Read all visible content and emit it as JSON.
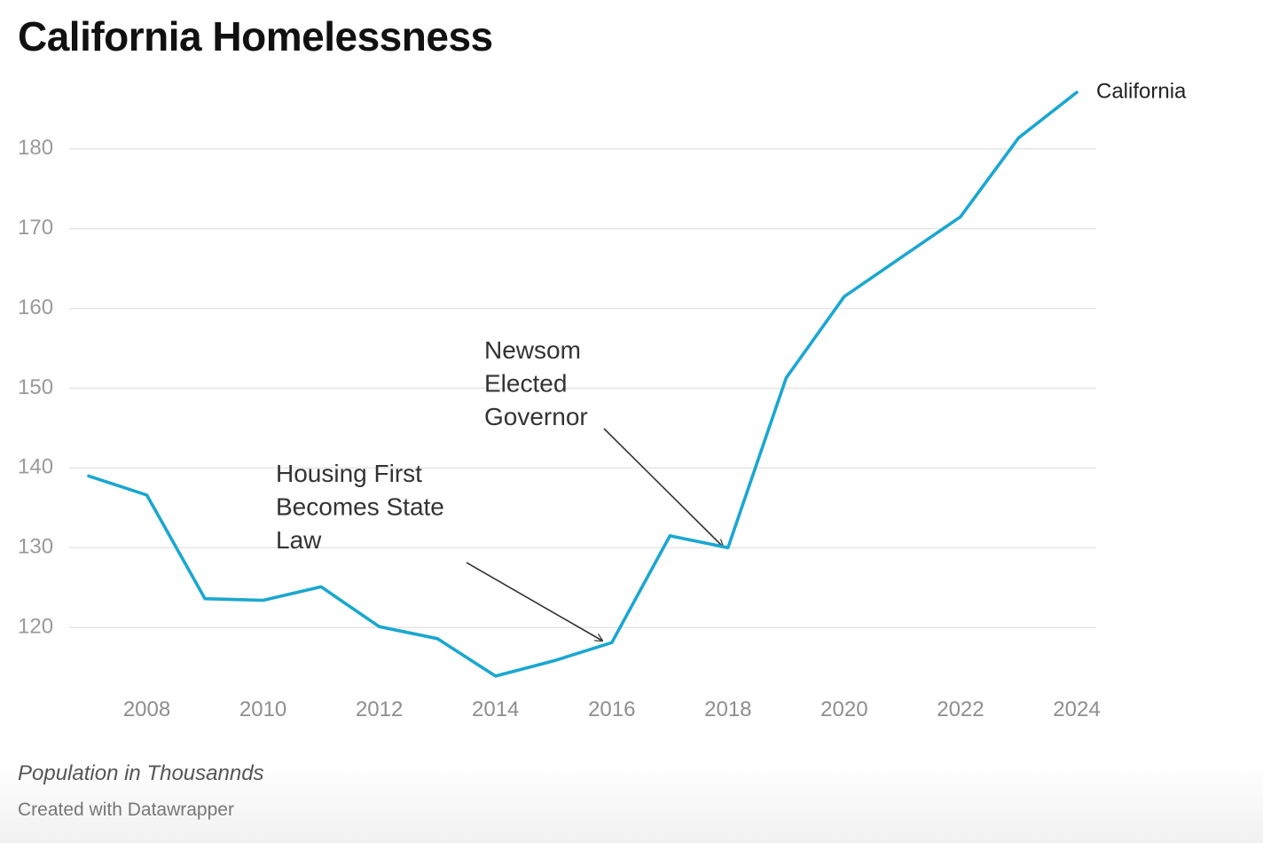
{
  "chart_data": {
    "type": "line",
    "title": "California Homelessness",
    "x": [
      2007,
      2008,
      2009,
      2010,
      2011,
      2012,
      2013,
      2014,
      2015,
      2016,
      2017,
      2018,
      2019,
      2020,
      2021,
      2022,
      2023,
      2024
    ],
    "series": [
      {
        "name": "California",
        "color": "#1aa7d1",
        "values": [
          139.0,
          136.6,
          123.6,
          123.4,
          125.1,
          120.1,
          118.6,
          113.9,
          115.8,
          118.1,
          131.5,
          130.0,
          151.3,
          161.5,
          166.5,
          171.5,
          181.4,
          187.1
        ]
      }
    ],
    "x_ticks": [
      2008,
      2010,
      2012,
      2014,
      2016,
      2018,
      2020,
      2022,
      2024
    ],
    "y_ticks": [
      120,
      130,
      140,
      150,
      160,
      170,
      180
    ],
    "xlim": [
      2007,
      2024
    ],
    "ylim": [
      113,
      187
    ],
    "grid": true,
    "legend": "end-of-line label",
    "annotations": [
      {
        "lines": [
          "Housing First",
          "Becomes State",
          "Law"
        ],
        "x": 2016,
        "y": 118.1
      },
      {
        "lines": [
          "Newsom",
          "Elected",
          "Governor"
        ],
        "x": 2018,
        "y": 130.0
      }
    ],
    "footnote": "Population in Thousannds",
    "credit": "Created with Datawrapper"
  }
}
